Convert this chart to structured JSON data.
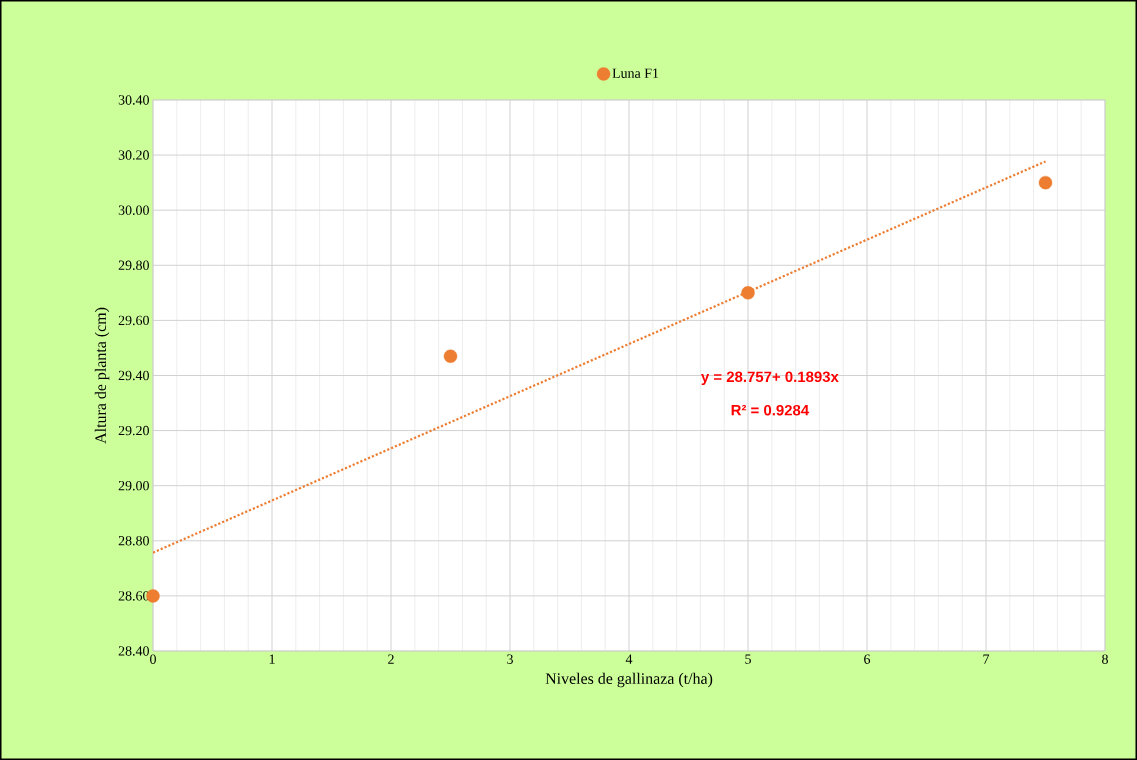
{
  "chart_data": {
    "type": "scatter",
    "xlabel": "Niveles de gallinaza (t/ha)",
    "ylabel": "Altura de planta (cm)",
    "xlim": [
      0,
      8
    ],
    "xticks": [
      0,
      1,
      2,
      3,
      4,
      5,
      6,
      7,
      8
    ],
    "ylim": [
      28.4,
      30.4
    ],
    "yticks": [
      {
        "value": 28.4,
        "label": "28.40"
      },
      {
        "value": 28.6,
        "label": "28.60"
      },
      {
        "value": 28.8,
        "label": "28.80"
      },
      {
        "value": 29.0,
        "label": "29.00"
      },
      {
        "value": 29.2,
        "label": "29.20"
      },
      {
        "value": 29.4,
        "label": "29.40"
      },
      {
        "value": 29.6,
        "label": "29.60"
      },
      {
        "value": 29.8,
        "label": "29.80"
      },
      {
        "value": 30.0,
        "label": "30.00"
      },
      {
        "value": 30.2,
        "label": "30.20"
      },
      {
        "value": 30.4,
        "label": "30.40"
      }
    ],
    "grid": true,
    "legend": "top",
    "marker": "circle",
    "series": [
      {
        "name": "Luna F1",
        "color": "#ed7d31",
        "x": [
          0,
          2.5,
          5,
          7.5
        ],
        "values": [
          28.6,
          29.47,
          29.7,
          30.1
        ]
      },
      {
        "type": "line",
        "color": "#ed7d31",
        "line_style": "dotted",
        "marker": "none",
        "x": [
          0,
          7.5
        ],
        "values": [
          28.757,
          30.177
        ]
      }
    ],
    "annotations": [
      "y = 28.757+ 0.1893x",
      "R² = 0.9284"
    ]
  }
}
